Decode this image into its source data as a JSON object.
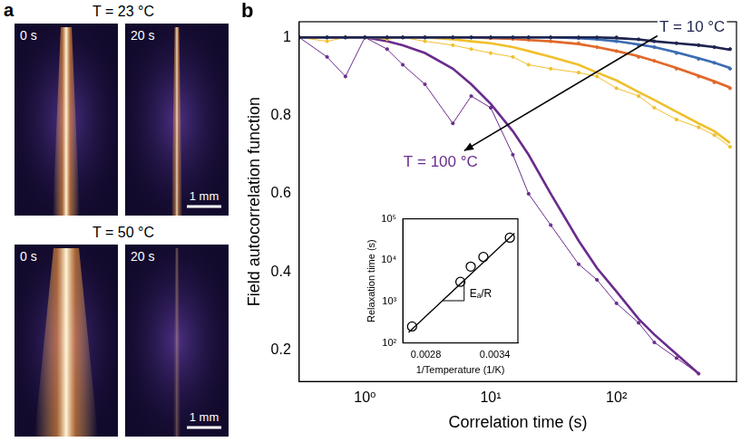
{
  "panel_a": {
    "panel": "a",
    "groups": [
      {
        "title": "T = 23 °C",
        "frames": [
          "0 s",
          "20 s"
        ],
        "scale_bar": "1 mm"
      },
      {
        "title": "T = 50 °C",
        "frames": [
          "0 s",
          "20 s"
        ],
        "scale_bar": "1 mm"
      }
    ]
  },
  "chart_data": [
    {
      "type": "line",
      "panel": "b",
      "x_label": "Correlation time (s)",
      "y_label": "Field autocorrelation function",
      "log": "x",
      "grid": false,
      "xlim": [
        0.3,
        900
      ],
      "xticks": [
        {
          "value": 1,
          "label": "10⁰"
        },
        {
          "value": 10,
          "label": "10¹"
        },
        {
          "value": 100,
          "label": "10²"
        }
      ],
      "ylim": [
        0.12,
        1.04
      ],
      "yticks": [
        0.2,
        0.4,
        0.6,
        0.8,
        1
      ],
      "x": [
        0.3,
        0.5,
        0.7,
        1,
        1.5,
        2,
        3,
        5,
        7,
        10,
        15,
        20,
        30,
        50,
        70,
        100,
        150,
        200,
        300,
        450,
        600,
        800
      ],
      "series": [
        {
          "color": "#1f2550",
          "values": [
            1,
            1,
            1,
            1,
            1,
            1,
            1,
            1,
            1,
            1,
            1,
            1,
            1,
            1,
            1,
            1,
            0.995,
            0.99,
            0.985,
            0.98,
            0.975,
            0.97
          ],
          "fit": [
            1,
            1,
            1,
            1,
            1,
            1,
            1,
            1,
            1,
            1,
            1,
            1,
            1,
            1,
            1,
            0.998,
            0.995,
            0.99,
            0.985,
            0.98,
            0.975,
            0.968
          ]
        },
        {
          "color": "#3d6db3",
          "values": [
            1,
            1,
            1,
            1,
            1,
            1,
            1,
            1,
            1,
            1,
            1,
            1,
            1,
            0.998,
            0.996,
            0.99,
            0.98,
            0.975,
            0.96,
            0.945,
            0.935,
            0.92
          ],
          "fit": [
            1,
            1,
            1,
            1,
            1,
            1,
            1,
            1,
            1,
            1,
            1,
            1,
            1,
            0.998,
            0.995,
            0.99,
            0.982,
            0.975,
            0.962,
            0.947,
            0.935,
            0.922
          ]
        },
        {
          "color": "#e06a2c",
          "values": [
            1,
            1,
            1,
            1,
            1,
            1,
            1,
            1,
            1,
            0.998,
            0.996,
            0.994,
            0.99,
            0.985,
            0.975,
            0.965,
            0.95,
            0.94,
            0.92,
            0.9,
            0.885,
            0.87
          ],
          "fit": [
            1,
            1,
            1,
            1,
            1,
            1,
            1,
            1,
            1,
            0.998,
            0.996,
            0.993,
            0.99,
            0.983,
            0.975,
            0.965,
            0.952,
            0.94,
            0.922,
            0.902,
            0.888,
            0.872
          ]
        },
        {
          "color": "#f0c02c",
          "values": [
            1,
            0.99,
            1,
            1,
            0.995,
            1,
            0.99,
            0.98,
            0.97,
            0.96,
            0.95,
            0.93,
            0.92,
            0.91,
            0.9,
            0.87,
            0.85,
            0.82,
            0.79,
            0.77,
            0.75,
            0.72
          ],
          "fit": [
            1,
            1,
            1,
            1,
            1,
            1,
            1,
            0.995,
            0.99,
            0.985,
            0.975,
            0.965,
            0.95,
            0.93,
            0.91,
            0.89,
            0.86,
            0.84,
            0.81,
            0.78,
            0.76,
            0.73
          ]
        },
        {
          "color": "#6a2c8c",
          "values": [
            1,
            0.95,
            0.9,
            1,
            0.97,
            0.93,
            0.88,
            0.78,
            0.85,
            0.82,
            0.7,
            0.6,
            0.52,
            0.42,
            0.38,
            0.32,
            0.27,
            0.22,
            0.18,
            0.14,
            null,
            null
          ],
          "fit": [
            1,
            1,
            1,
            1,
            0.99,
            0.98,
            0.96,
            0.92,
            0.88,
            0.83,
            0.76,
            0.7,
            0.6,
            0.48,
            0.41,
            0.35,
            0.28,
            0.24,
            0.19,
            0.14,
            null,
            null
          ]
        }
      ],
      "annotations": [
        {
          "text": "T = 10 °C",
          "x": 400,
          "y": 1.025,
          "color": "#1f2550"
        },
        {
          "text": "T = 100 °C",
          "x": 4,
          "y": 0.68,
          "color": "#6a2c8c"
        }
      ]
    },
    {
      "type": "scatter",
      "x_label": "1/Temperature (1/K)",
      "y_label": "Relaxation time (s)",
      "log": "y",
      "grid": false,
      "marker": "circle",
      "color": "#000000",
      "xlim": [
        0.0026,
        0.0036
      ],
      "xticks": [
        0.0028,
        0.0034
      ],
      "ylim": [
        100,
        100000
      ],
      "yticks": [
        {
          "value": 100,
          "label": "10²"
        },
        {
          "value": 1000,
          "label": "10³"
        },
        {
          "value": 10000,
          "label": "10⁴"
        },
        {
          "value": 100000,
          "label": "10⁵"
        }
      ],
      "x": [
        0.00268,
        0.0031,
        0.00319,
        0.0033,
        0.00353
      ],
      "values": [
        250,
        3000,
        7000,
        12000,
        35000
      ],
      "fit": {
        "x": [
          0.00265,
          0.00357
        ],
        "values": [
          180,
          45000
        ]
      },
      "annotations": [
        {
          "text": "Eₐ/R",
          "x": 0.00318,
          "y": 1500
        }
      ]
    }
  ]
}
